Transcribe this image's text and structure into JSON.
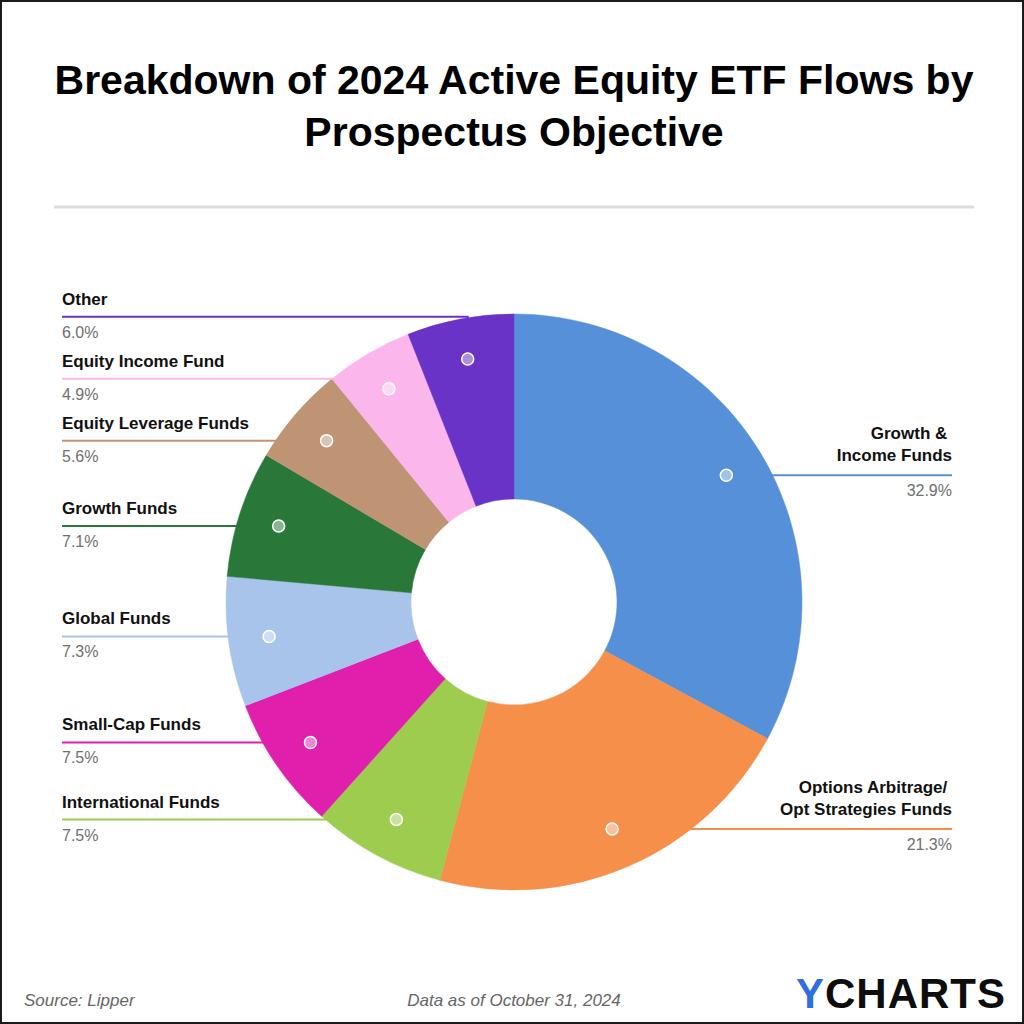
{
  "chart_data": {
    "type": "donut",
    "title": "Breakdown of 2024 Active Equity ETF Flows by Prospectus Objective",
    "categories": [
      "Growth & Income Funds",
      "Options Arbitrage/ Opt Strategies Funds",
      "International Funds",
      "Small-Cap Funds",
      "Global Funds",
      "Growth Funds",
      "Equity Leverage Funds",
      "Equity Income Fund",
      "Other"
    ],
    "values": [
      32.9,
      21.3,
      7.5,
      7.5,
      7.3,
      7.1,
      5.6,
      4.9,
      6.0
    ],
    "value_labels": [
      "32.9%",
      "21.3%",
      "7.5%",
      "7.5%",
      "7.3%",
      "7.1%",
      "5.6%",
      "4.9%",
      "6.0%"
    ],
    "colors": [
      "#5690d9",
      "#f58f4a",
      "#9dcc4e",
      "#e01fad",
      "#a8c4ea",
      "#2a773a",
      "#bf9474",
      "#fbb6ec",
      "#6a33c8"
    ],
    "data_labels": true,
    "source": "Source: Lipper",
    "note": "Data as of October 31, 2024",
    "logo": "YCHARTS"
  }
}
